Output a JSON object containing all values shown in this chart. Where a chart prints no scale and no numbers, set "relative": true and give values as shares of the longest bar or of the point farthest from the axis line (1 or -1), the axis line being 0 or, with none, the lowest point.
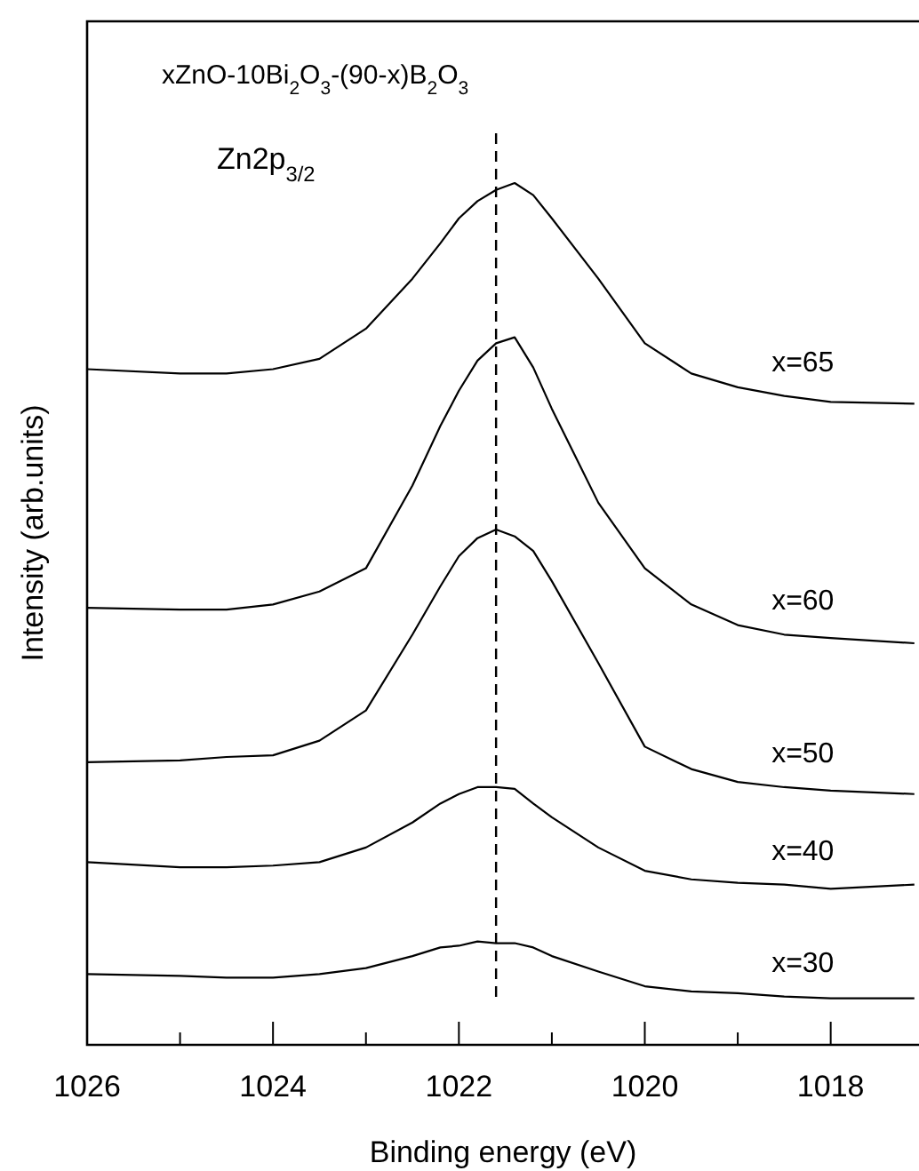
{
  "chart_data": {
    "type": "line",
    "relative": true,
    "xlabel": "Binding energy (eV)",
    "ylabel": "Intensity (arb.units)",
    "annotations": [
      "xZnO-10Bi$_{2}$O$_{3}$-(90-x)B$_{2}$O$_{3}$",
      "Zn2p$_{3/2}$"
    ],
    "x": [
      1026,
      1025,
      1024.5,
      1024,
      1023.5,
      1023,
      1022.5,
      1022.2,
      1022,
      1021.8,
      1021.6,
      1021.4,
      1021.2,
      1021,
      1020.5,
      1020,
      1019.5,
      1019,
      1018.5,
      1018,
      1017.1
    ],
    "xlim": [
      1026,
      1017.05
    ],
    "xticks": [
      1026,
      {
        "value": 1025,
        "label": null
      },
      1024,
      {
        "value": 1023,
        "label": null
      },
      1022,
      {
        "value": 1021,
        "label": null
      },
      1020,
      {
        "value": 1019,
        "label": null
      },
      1018
    ],
    "series": [
      {
        "name": "x=65",
        "color": "#000000",
        "values": [
          0.784,
          0.779,
          0.779,
          0.784,
          0.796,
          0.831,
          0.889,
          0.93,
          0.959,
          0.979,
          0.992,
          1.0,
          0.986,
          0.959,
          0.889,
          0.814,
          0.779,
          0.763,
          0.753,
          0.746,
          0.744
        ]
      },
      {
        "name": "x=60",
        "color": "#000000",
        "values": [
          0.507,
          0.505,
          0.505,
          0.511,
          0.526,
          0.553,
          0.649,
          0.718,
          0.759,
          0.794,
          0.814,
          0.821,
          0.786,
          0.738,
          0.629,
          0.553,
          0.511,
          0.487,
          0.476,
          0.472,
          0.466
        ]
      },
      {
        "name": "x=50",
        "color": "#000000",
        "values": [
          0.328,
          0.33,
          0.334,
          0.336,
          0.353,
          0.388,
          0.476,
          0.532,
          0.567,
          0.588,
          0.598,
          0.59,
          0.573,
          0.538,
          0.443,
          0.346,
          0.32,
          0.305,
          0.299,
          0.295,
          0.291
        ]
      },
      {
        "name": "x=40",
        "color": "#000000",
        "values": [
          0.212,
          0.206,
          0.206,
          0.208,
          0.212,
          0.229,
          0.258,
          0.28,
          0.291,
          0.299,
          0.299,
          0.297,
          0.28,
          0.264,
          0.229,
          0.202,
          0.192,
          0.188,
          0.186,
          0.181,
          0.186
        ]
      },
      {
        "name": "x=30",
        "color": "#000000",
        "values": [
          0.082,
          0.08,
          0.078,
          0.078,
          0.082,
          0.089,
          0.103,
          0.113,
          0.115,
          0.12,
          0.118,
          0.118,
          0.113,
          0.103,
          0.085,
          0.068,
          0.062,
          0.06,
          0.056,
          0.054,
          0.054
        ]
      }
    ],
    "ref_lines": [
      {
        "axis": "x",
        "value": 1021.6,
        "line_style": "dashed",
        "color": "#000000"
      }
    ],
    "legend": false
  }
}
